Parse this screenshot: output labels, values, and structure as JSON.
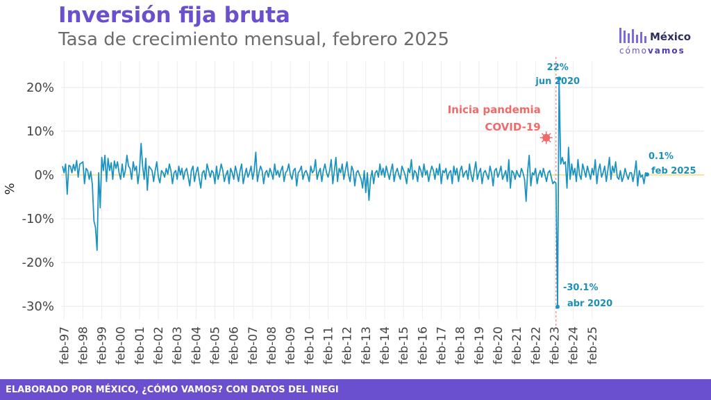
{
  "header": {
    "title": "Inversión fija bruta",
    "subtitle": "Tasa de crecimiento mensual, febrero 2025"
  },
  "logo": {
    "line1": "México",
    "line2a": "cómo",
    "line2b": "vamos"
  },
  "footer": {
    "text": "ELABORADO POR MÉXICO, ¿CÓMO VAMOS? CON DATOS DEL INEGI"
  },
  "colors": {
    "line": "#1b93c2",
    "accent": "#6a4fcf",
    "pandemic": "#f06a6a",
    "zero_line": "#f2d54b"
  },
  "chart_data": {
    "type": "line",
    "ylabel": "%",
    "ylim": [
      -33,
      26
    ],
    "yticks": [
      20,
      10,
      0,
      -10,
      -20,
      -30
    ],
    "ytick_labels": [
      "20%",
      "10%",
      "0%",
      "-10%",
      "-20%",
      "-30%"
    ],
    "xtick_labels": [
      "feb-97",
      "feb-98",
      "feb-99",
      "feb-00",
      "feb-01",
      "feb-02",
      "feb-03",
      "feb-04",
      "feb-05",
      "feb-06",
      "feb-07",
      "feb-08",
      "feb-09",
      "feb-10",
      "feb-11",
      "feb-12",
      "feb-13",
      "feb-14",
      "feb-15",
      "feb-16",
      "feb-17",
      "feb-18",
      "feb-19",
      "feb-20",
      "feb-21",
      "feb-22",
      "feb-23",
      "feb-24",
      "feb-25"
    ],
    "grid": true,
    "series": [
      {
        "values": [
          2.0,
          0.5,
          2.5,
          -4.4,
          2.2,
          2.0,
          0.5,
          2.4,
          1.0,
          3.3,
          -0.5,
          2.5,
          2.7,
          3.0,
          -2.0,
          1.5,
          1.0,
          -1.0,
          0.8,
          -2.2,
          -10.5,
          -12.0,
          -17.2,
          0.5,
          -7.5,
          4.0,
          1.0,
          4.5,
          -1.5,
          3.8,
          1.0,
          2.8,
          -1.0,
          3.2,
          1.5,
          3.0,
          0.5,
          -1.0,
          2.5,
          -0.5,
          1.0,
          4.5,
          2.0,
          1.5,
          -1.0,
          3.0,
          1.0,
          2.0,
          -2.0,
          1.0,
          7.2,
          2.0,
          -1.0,
          3.8,
          -3.5,
          2.0,
          1.5,
          1.0,
          -1.5,
          1.0,
          3.0,
          -0.5,
          -1.8,
          1.0,
          0.5,
          -0.5,
          1.5,
          0.2,
          2.5,
          1.0,
          -2.0,
          0.5,
          1.0,
          -1.0,
          2.0,
          0.0,
          1.5,
          -1.0,
          0.8,
          1.5,
          -0.5,
          -2.5,
          1.0,
          2.0,
          -1.5,
          0.5,
          1.8,
          -0.8,
          -3.0,
          0.5,
          1.0,
          -1.0,
          2.5,
          1.0,
          -0.5,
          1.0,
          0.5,
          -2.0,
          2.0,
          -1.0,
          0.5,
          2.5,
          1.0,
          -1.5,
          0.0,
          1.0,
          -2.0,
          1.5,
          0.5,
          -1.0,
          2.0,
          0.5,
          -1.5,
          1.0,
          2.5,
          -2.0,
          0.0,
          1.5,
          -0.5,
          0.5,
          2.0,
          -1.0,
          1.0,
          5.2,
          -1.5,
          0.5,
          2.0,
          1.0,
          -2.0,
          0.5,
          1.0,
          -0.5,
          1.5,
          0.5,
          -1.0,
          2.5,
          0.0,
          1.0,
          -0.5,
          1.0,
          2.0,
          -1.5,
          0.5,
          1.0,
          2.5,
          0.0,
          -1.0,
          1.0,
          1.5,
          -2.5,
          0.5,
          1.0,
          2.0,
          -1.0,
          0.5,
          1.0,
          0.0,
          -1.5,
          2.0,
          0.5,
          1.0,
          3.5,
          -1.0,
          0.5,
          1.5,
          -1.5,
          1.0,
          2.5,
          0.5,
          -0.5,
          1.0,
          3.5,
          -2.0,
          1.0,
          4.0,
          -1.5,
          1.5,
          0.5,
          2.5,
          -1.0,
          1.0,
          3.0,
          0.0,
          -1.5,
          2.0,
          1.0,
          -2.5,
          0.5,
          1.0,
          0.0,
          -1.0,
          -3.0,
          1.0,
          -4.0,
          0.5,
          -5.8,
          -1.0,
          1.0,
          -2.0,
          0.5,
          1.0,
          -0.5,
          2.5,
          0.0,
          1.5,
          -0.5,
          2.0,
          0.5,
          -1.0,
          1.0,
          2.5,
          -1.5,
          0.5,
          1.5,
          0.0,
          -1.0,
          2.0,
          1.0,
          0.0,
          -2.0,
          1.5,
          0.5,
          3.5,
          -1.0,
          1.0,
          0.5,
          -1.5,
          2.0,
          1.0,
          -0.5,
          2.5,
          0.0,
          1.0,
          -1.5,
          0.5,
          2.0,
          1.0,
          -1.0,
          1.5,
          0.0,
          2.5,
          -2.0,
          1.0,
          0.5,
          1.5,
          -1.0,
          0.5,
          1.0,
          -2.0,
          2.0,
          0.0,
          1.5,
          -1.5,
          1.0,
          2.0,
          -0.5,
          0.5,
          1.0,
          -1.0,
          2.5,
          0.0,
          -1.5,
          1.0,
          3.0,
          -1.0,
          0.5,
          1.5,
          -2.0,
          0.5,
          1.0,
          0.0,
          -1.0,
          2.0,
          0.5,
          -2.5,
          1.0,
          1.5,
          -0.5,
          0.5,
          2.0,
          -1.0,
          0.0,
          1.0,
          -1.5,
          3.5,
          -3.0,
          1.0,
          0.5,
          -1.0,
          1.0,
          0.0,
          -0.5,
          1.5,
          0.5,
          -1.0,
          -6.0,
          1.0,
          4.5,
          -2.5,
          0.5,
          0.0,
          1.5,
          -2.0,
          0.0,
          1.0,
          -0.5,
          1.5,
          0.0,
          -1.5,
          0.5,
          1.0,
          -0.5,
          -2.0,
          -1.5,
          -2.0,
          -30.1,
          22.0,
          2.5,
          4.0,
          2.5,
          3.0,
          -3.0,
          6.3,
          -1.0,
          2.5,
          0.0,
          1.5,
          -1.5,
          3.5,
          0.0,
          -1.0,
          2.5,
          1.0,
          -0.5,
          2.0,
          0.5,
          -1.0,
          1.5,
          0.0,
          3.5,
          -2.0,
          1.0,
          2.5,
          -0.5,
          0.5,
          2.0,
          -1.5,
          1.0,
          4.0,
          -1.0,
          2.0,
          0.5,
          3.0,
          -0.5,
          -1.0,
          1.0,
          -1.5,
          -0.5,
          1.5,
          0.0,
          -1.0,
          0.5,
          0.5,
          -1.5,
          0.5,
          3.2,
          -2.5,
          1.0,
          -0.5,
          0.0,
          -2.0,
          0.5,
          0.1
        ]
      }
    ],
    "annotations": [
      {
        "value_label": "22%",
        "date_label": "jun 2020"
      },
      {
        "value_label": "-30.1%",
        "date_label": "abr 2020"
      },
      {
        "value_label": "0.1%",
        "date_label": "feb 2025"
      },
      {
        "event_line1": "Inicia pandemia",
        "event_line2": "COVID-19"
      }
    ]
  }
}
